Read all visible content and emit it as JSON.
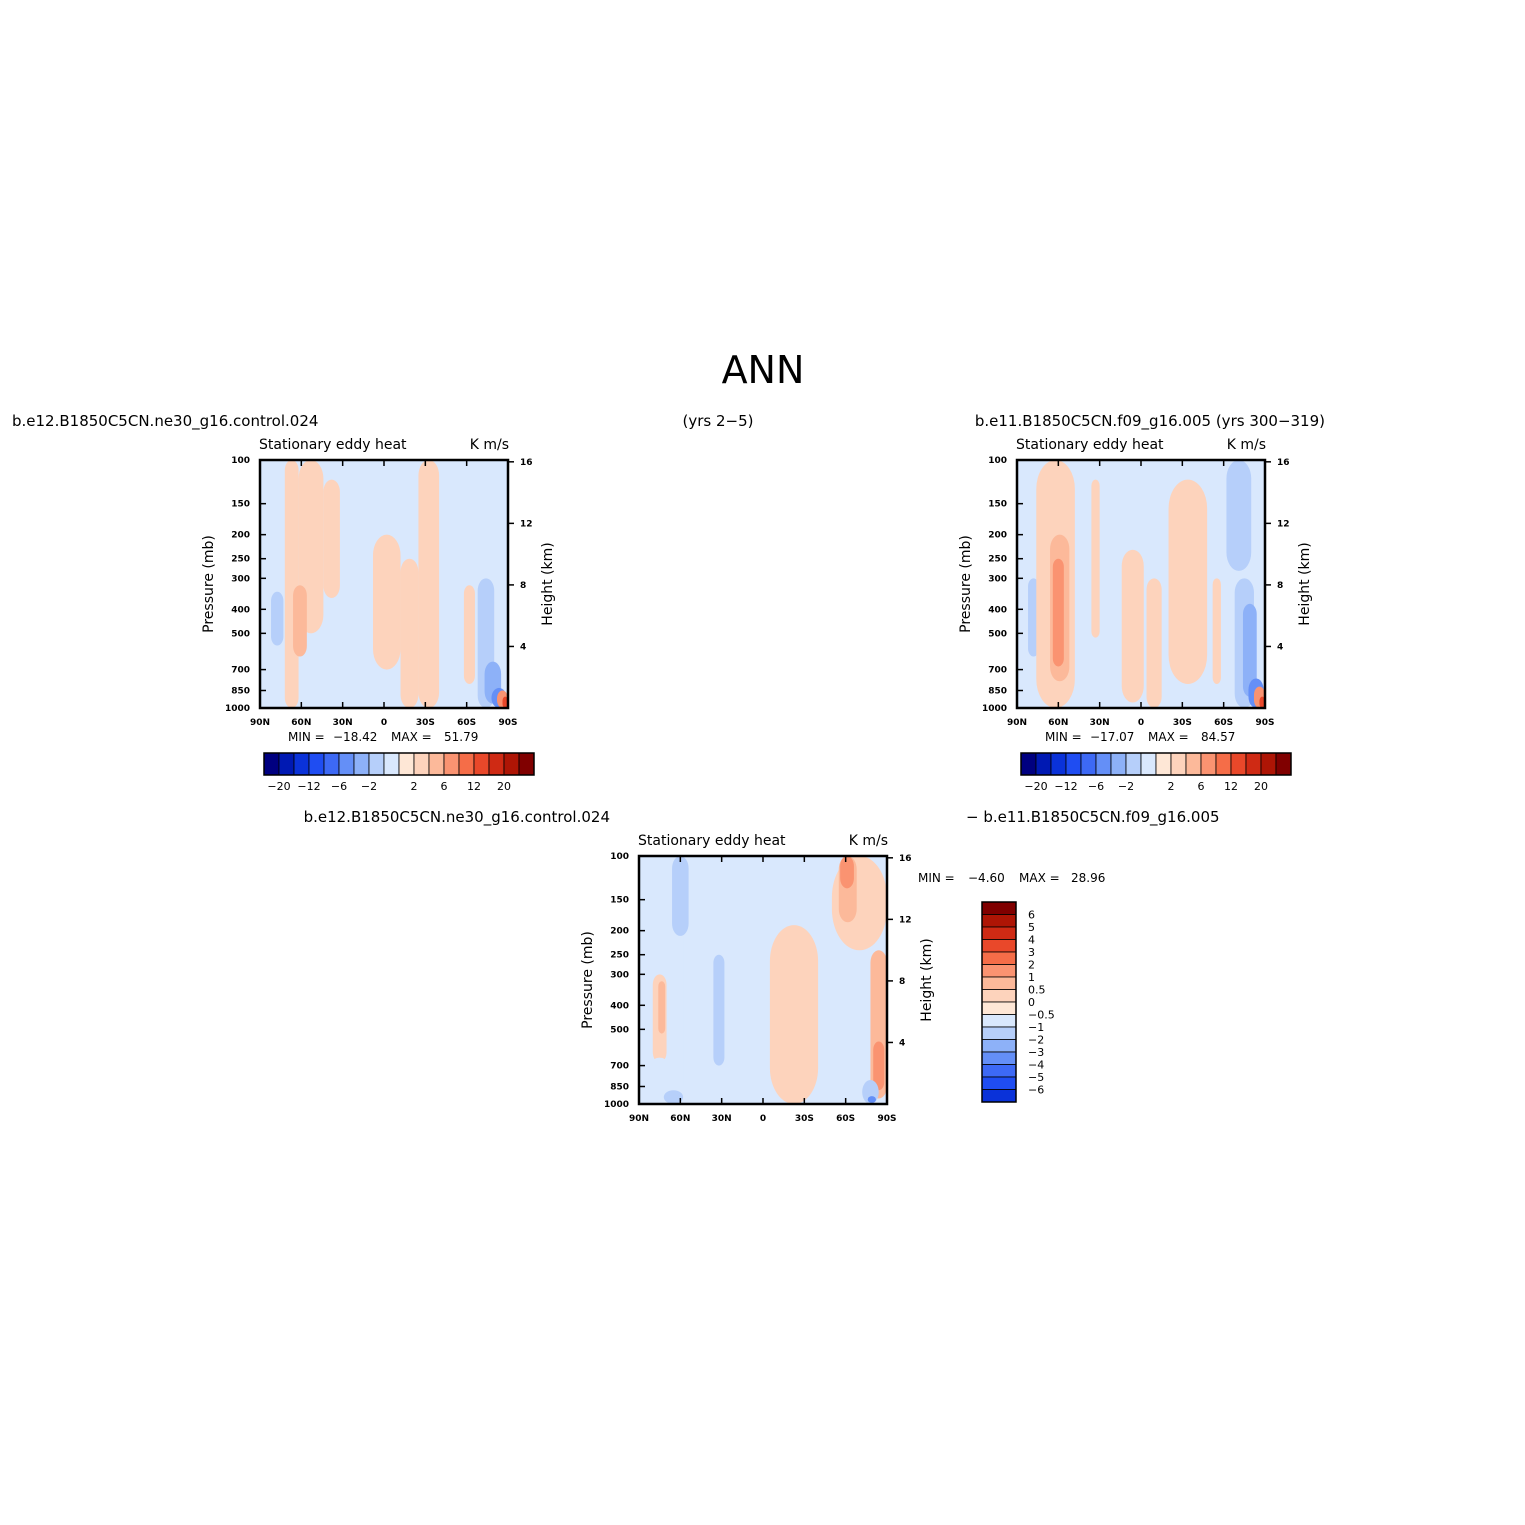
{
  "main_title": "ANN",
  "colors": {
    "neg": [
      "#000080",
      "#0019b3",
      "#0a32d9",
      "#1f4df2",
      "#3d69f5",
      "#648ff7",
      "#8db1f8",
      "#b6cffa",
      "#d9e8fd"
    ],
    "pos": [
      "#fee7d6",
      "#fdd3bc",
      "#fcb99a",
      "#fa9371",
      "#f56d48",
      "#e9482a",
      "#cf2a14",
      "#ae1505",
      "#800000"
    ]
  },
  "chart_data": [
    {
      "type": "heatmap",
      "case_label": "b.e12.B1850C5CN.ne30_g16.control.024",
      "years_label": "(yrs 2−5)",
      "title": "Stationary eddy heat",
      "units": "K m/s",
      "ylabel": "Pressure (mb)",
      "ylabel_right": "Height (km)",
      "x_ticks": [
        "90N",
        "60N",
        "30N",
        "0",
        "30S",
        "60S",
        "90S"
      ],
      "x_range": [
        90,
        -90
      ],
      "y_ticks": [
        100,
        150,
        200,
        250,
        300,
        400,
        500,
        700,
        850,
        1000
      ],
      "y_log": true,
      "height_ticks": [
        16,
        12,
        8,
        4
      ],
      "min_label": "MIN =",
      "min_value": "−18.42",
      "max_label": "MAX =",
      "max_value": "51.79",
      "colorbar_labels": [
        "−20",
        "−12",
        "−6",
        "−2",
        "2",
        "6",
        "12",
        "20"
      ],
      "regions": [
        {
          "lat": 90,
          "lat2": 83,
          "p1": 100,
          "p2": 1000,
          "level": -1
        },
        {
          "lat": 72,
          "lat2": 62,
          "p1": 100,
          "p2": 1000,
          "level": 1
        },
        {
          "lat": 62,
          "lat2": 44,
          "p1": 100,
          "p2": 500,
          "level": 1
        },
        {
          "lat": 66,
          "lat2": 56,
          "p1": 320,
          "p2": 620,
          "level": 2
        },
        {
          "lat": 82,
          "lat2": 73,
          "p1": 340,
          "p2": 560,
          "level": -2
        },
        {
          "lat": 44,
          "lat2": 32,
          "p1": 120,
          "p2": 360,
          "level": 1
        },
        {
          "lat": 40,
          "lat2": 29,
          "p1": 360,
          "p2": 820,
          "level": -1
        },
        {
          "lat": 14,
          "lat2": -10,
          "p1": 100,
          "p2": 190,
          "level": -1
        },
        {
          "lat": 8,
          "lat2": -12,
          "p1": 200,
          "p2": 700,
          "level": 1
        },
        {
          "lat": -12,
          "lat2": -25,
          "p1": 250,
          "p2": 1000,
          "level": 1
        },
        {
          "lat": -25,
          "lat2": -40,
          "p1": 100,
          "p2": 1000,
          "level": 1
        },
        {
          "lat": -48,
          "lat2": -58,
          "p1": 100,
          "p2": 1000,
          "level": -1
        },
        {
          "lat": -58,
          "lat2": -66,
          "p1": 320,
          "p2": 800,
          "level": 1
        },
        {
          "lat": -68,
          "lat2": -80,
          "p1": 300,
          "p2": 1000,
          "level": -2
        },
        {
          "lat": -73,
          "lat2": -85,
          "p1": 650,
          "p2": 960,
          "level": -3
        },
        {
          "lat": -78,
          "lat2": -89,
          "p1": 830,
          "p2": 1000,
          "level": -4
        },
        {
          "lat": -82,
          "lat2": -90,
          "p1": 850,
          "p2": 1000,
          "level": 3
        },
        {
          "lat": -86,
          "lat2": -90,
          "p1": 900,
          "p2": 1000,
          "level": 5
        }
      ]
    },
    {
      "type": "heatmap",
      "case_label": "b.e11.B1850C5CN.f09_g16.005 (yrs 300−319)",
      "title": "Stationary eddy heat",
      "units": "K m/s",
      "ylabel": "Pressure (mb)",
      "ylabel_right": "Height (km)",
      "x_ticks": [
        "90N",
        "60N",
        "30N",
        "0",
        "30S",
        "60S",
        "90S"
      ],
      "x_range": [
        90,
        -90
      ],
      "y_ticks": [
        100,
        150,
        200,
        250,
        300,
        400,
        500,
        700,
        850,
        1000
      ],
      "y_log": true,
      "height_ticks": [
        16,
        12,
        8,
        4
      ],
      "min_label": "MIN =",
      "min_value": "−17.07",
      "max_label": "MAX =",
      "max_value": "84.57",
      "colorbar_labels": [
        "−20",
        "−12",
        "−6",
        "−2",
        "2",
        "6",
        "12",
        "20"
      ],
      "regions": [
        {
          "lat": 90,
          "lat2": 82,
          "p1": 100,
          "p2": 1000,
          "level": -1
        },
        {
          "lat": 82,
          "lat2": 74,
          "p1": 300,
          "p2": 620,
          "level": -2
        },
        {
          "lat": 76,
          "lat2": 48,
          "p1": 100,
          "p2": 1000,
          "level": 1
        },
        {
          "lat": 66,
          "lat2": 52,
          "p1": 200,
          "p2": 780,
          "level": 2
        },
        {
          "lat": 64,
          "lat2": 56,
          "p1": 250,
          "p2": 680,
          "level": 3
        },
        {
          "lat": 36,
          "lat2": 30,
          "p1": 120,
          "p2": 520,
          "level": 1
        },
        {
          "lat": 14,
          "lat2": -2,
          "p1": 230,
          "p2": 950,
          "level": 1
        },
        {
          "lat": -4,
          "lat2": -15,
          "p1": 300,
          "p2": 1000,
          "level": 1
        },
        {
          "lat": -20,
          "lat2": -48,
          "p1": 120,
          "p2": 800,
          "level": 1
        },
        {
          "lat": -52,
          "lat2": -58,
          "p1": 300,
          "p2": 800,
          "level": 1
        },
        {
          "lat": -62,
          "lat2": -80,
          "p1": 100,
          "p2": 280,
          "level": -2
        },
        {
          "lat": -68,
          "lat2": -82,
          "p1": 300,
          "p2": 1000,
          "level": -2
        },
        {
          "lat": -74,
          "lat2": -84,
          "p1": 380,
          "p2": 900,
          "level": -3
        },
        {
          "lat": -78,
          "lat2": -89,
          "p1": 760,
          "p2": 1000,
          "level": -4
        },
        {
          "lat": -82,
          "lat2": -90,
          "p1": 820,
          "p2": 1000,
          "level": 3
        },
        {
          "lat": -86,
          "lat2": -90,
          "p1": 900,
          "p2": 1000,
          "level": 5
        }
      ]
    },
    {
      "type": "heatmap",
      "case_label": "b.e12.B1850C5CN.ne30_g16.control.024",
      "case_label_right": "− b.e11.B1850C5CN.f09_g16.005",
      "title": "Stationary eddy heat",
      "units": "K m/s",
      "ylabel": "Pressure (mb)",
      "ylabel_right": "Height (km)",
      "x_ticks": [
        "90N",
        "60N",
        "30N",
        "0",
        "30S",
        "60S",
        "90S"
      ],
      "x_range": [
        90,
        -90
      ],
      "y_ticks": [
        100,
        150,
        200,
        250,
        300,
        400,
        500,
        700,
        850,
        1000
      ],
      "y_log": true,
      "height_ticks": [
        16,
        12,
        8,
        4
      ],
      "min_label": "MIN =",
      "min_value": "−4.60",
      "max_label": "MAX =",
      "max_value": "28.96",
      "colorbar_labels": [
        "6",
        "5",
        "4",
        "3",
        "2",
        "1",
        "0.5",
        "0",
        "−0.5",
        "−1",
        "−2",
        "−3",
        "−4",
        "−5",
        "−6"
      ],
      "regions": [
        {
          "lat": 58,
          "lat2": 40,
          "p1": 100,
          "p2": 1000,
          "level": -1
        },
        {
          "lat": 66,
          "lat2": 54,
          "p1": 100,
          "p2": 210,
          "level": -2
        },
        {
          "lat": 80,
          "lat2": 70,
          "p1": 300,
          "p2": 680,
          "level": 1
        },
        {
          "lat": 76,
          "lat2": 71,
          "p1": 320,
          "p2": 520,
          "level": 2
        },
        {
          "lat": 86,
          "lat2": 64,
          "p1": 650,
          "p2": 1000,
          "level": -1
        },
        {
          "lat": 72,
          "lat2": 58,
          "p1": 880,
          "p2": 1000,
          "level": -2
        },
        {
          "lat": 36,
          "lat2": 28,
          "p1": 250,
          "p2": 700,
          "level": -2
        },
        {
          "lat": 20,
          "lat2": 0,
          "p1": 100,
          "p2": 1000,
          "level": -1
        },
        {
          "lat": 0,
          "lat2": -20,
          "p1": 100,
          "p2": 160,
          "level": -1
        },
        {
          "lat": -5,
          "lat2": -40,
          "p1": 190,
          "p2": 1000,
          "level": 1
        },
        {
          "lat": -50,
          "lat2": -90,
          "p1": 100,
          "p2": 240,
          "level": 1
        },
        {
          "lat": -55,
          "lat2": -68,
          "p1": 100,
          "p2": 185,
          "level": 2
        },
        {
          "lat": -56,
          "lat2": -66,
          "p1": 100,
          "p2": 135,
          "level": 3
        },
        {
          "lat": -78,
          "lat2": -90,
          "p1": 240,
          "p2": 950,
          "level": 2
        },
        {
          "lat": -80,
          "lat2": -88,
          "p1": 560,
          "p2": 880,
          "level": 3
        },
        {
          "lat": -72,
          "lat2": -84,
          "p1": 800,
          "p2": 1000,
          "level": -2
        },
        {
          "lat": -76,
          "lat2": -82,
          "p1": 930,
          "p2": 990,
          "level": -4
        }
      ]
    }
  ]
}
